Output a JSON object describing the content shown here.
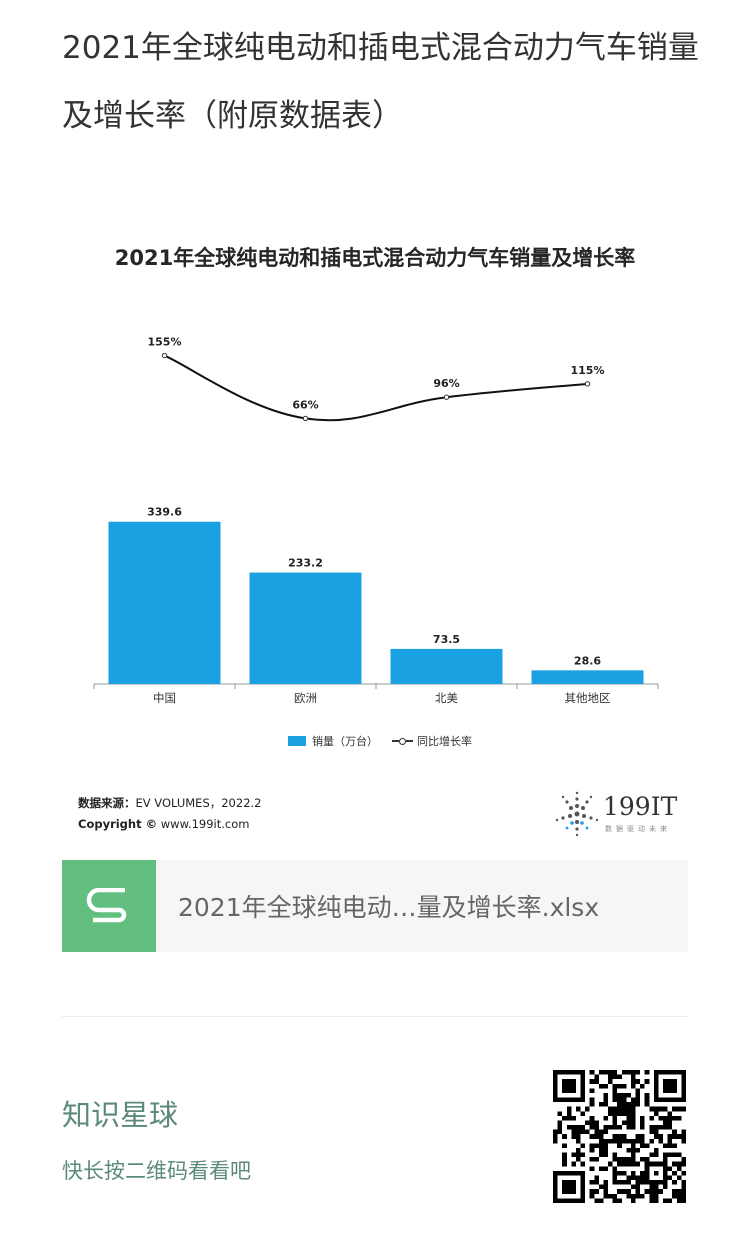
{
  "article": {
    "title": "2021年全球纯电动和插电式混合动力气车销量及增长率（附原数据表）"
  },
  "chart_data": {
    "type": "bar",
    "title": "2021年全球纯电动和插电式混合动力气车销量及增长率",
    "categories": [
      "中国",
      "欧洲",
      "北美",
      "其他地区"
    ],
    "series": [
      {
        "name": "销量（万台）",
        "type": "bar",
        "values": [
          339.6,
          233.2,
          73.5,
          28.6
        ],
        "color": "#1ba1e2"
      },
      {
        "name": "同比增长率",
        "type": "line",
        "values": [
          155,
          66,
          96,
          115
        ],
        "labels": [
          "155%",
          "66%",
          "96%",
          "115%"
        ],
        "color": "#111111"
      }
    ],
    "ylim_bar": [
      0,
      360
    ],
    "ylim_line": [
      0,
      170
    ],
    "legend_position": "bottom",
    "grid": false
  },
  "legend": {
    "bar_label": "销量（万台）",
    "line_label": "同比增长率"
  },
  "source": {
    "label": "数据来源：",
    "text": "EV VOLUMES，2022.2",
    "copyright_label": "Copyright ©",
    "copyright_text": "www.199it.com"
  },
  "logo": {
    "text": "199IT",
    "sub": "数据驱动未来"
  },
  "file": {
    "name": "2021年全球纯电动…量及增长率.xlsx",
    "icon_color": "#63bf80"
  },
  "planet": {
    "title": "知识星球",
    "subtitle": "快长按二维码看看吧"
  }
}
